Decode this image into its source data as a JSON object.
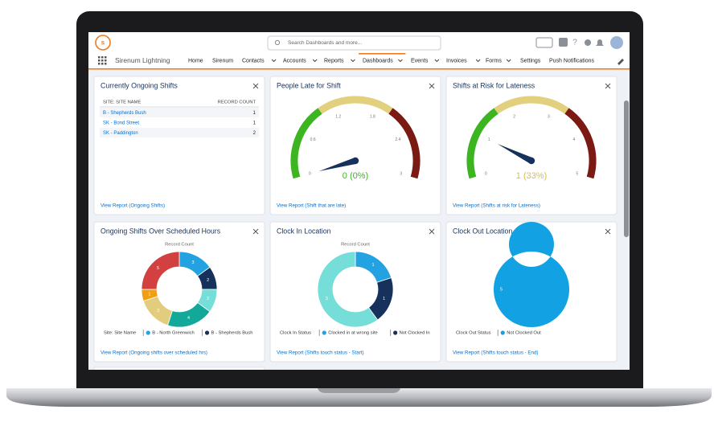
{
  "header": {
    "search_placeholder": "Search Dashboards and more...",
    "app_name": "Sirenum Lightning",
    "nav": [
      "Home",
      "Sirenum",
      "Contacts",
      "Accounts",
      "Reports",
      "Dashboards",
      "Events",
      "Invoices",
      "Forms",
      "Settings",
      "Push Notifications"
    ]
  },
  "widgets": [
    {
      "title": "Currently Ongoing Shifts",
      "table": {
        "columns": [
          "SITE: SITE NAME",
          "RECORD COUNT"
        ],
        "rows": [
          [
            "B - Shepherds Bush",
            1
          ],
          [
            "SK - Bond Street",
            1
          ],
          [
            "SK - Paddington",
            2
          ]
        ]
      },
      "link": "View Report (Ongoing Shifts)"
    },
    {
      "title": "People Late for Shift",
      "chart": {
        "type": "gauge",
        "ylim": [
          0,
          3
        ],
        "yticks": [
          0,
          0.6,
          1.2,
          1.8,
          2.4,
          3
        ],
        "value": 0,
        "value_label": "0 (0%)",
        "value_color": "#3cb521",
        "band_colors": [
          "#3cb521",
          "#e3d07f",
          "#7a1a12"
        ]
      },
      "link": "View Report (Shift that are late)"
    },
    {
      "title": "Shifts at Risk for Lateness",
      "chart": {
        "type": "gauge",
        "ylim": [
          0,
          5
        ],
        "yticks": [
          0,
          1,
          2,
          3,
          4,
          5
        ],
        "value": 1,
        "value_label": "1 (33%)",
        "value_color": "#d9bd4e",
        "band_colors": [
          "#3cb521",
          "#e3d07f",
          "#7a1a12"
        ]
      },
      "link": "View Report (Shifts at risk for Lateness)"
    },
    {
      "title": "Ongoing Shifts Over Scheduled Hours",
      "chart": {
        "type": "donut",
        "subtitle": "Record Count",
        "values": [
          3,
          2,
          2,
          4,
          3,
          1,
          5
        ],
        "colors": [
          "#22a2e0",
          "#16325c",
          "#76ded9",
          "#12a89a",
          "#e2cc7e",
          "#f19e10",
          "#d2413f"
        ],
        "legend_title": "Site: Site Name",
        "legend": [
          {
            "name": "B - North Greenwich",
            "color": "#22a2e0"
          },
          {
            "name": "B - Shepherds Bush",
            "color": "#16325c"
          }
        ]
      },
      "link": "View Report (Ongoing shifts over scheduled hrs)"
    },
    {
      "title": "Clock In Location",
      "chart": {
        "type": "donut",
        "subtitle": "Record Count",
        "values": [
          1,
          1,
          3
        ],
        "colors": [
          "#22a2e0",
          "#16325c",
          "#76ded9"
        ],
        "legend_title": "Clock In Status",
        "legend": [
          {
            "name": "Clocked in at wrong site",
            "color": "#22a2e0"
          },
          {
            "name": "Not Clocked In",
            "color": "#16325c"
          }
        ]
      },
      "link": "View Report (Shifts touch status - Start)"
    },
    {
      "title": "Clock Out Location",
      "chart": {
        "type": "donut",
        "subtitle": "Record Count",
        "values": [
          5
        ],
        "colors": [
          "#12a1e2"
        ],
        "legend_title": "Clock Out Status",
        "legend": [
          {
            "name": "Not Clocked Out",
            "color": "#12a1e2"
          }
        ]
      },
      "link": "View Report (Shifts touch status - End)"
    }
  ]
}
